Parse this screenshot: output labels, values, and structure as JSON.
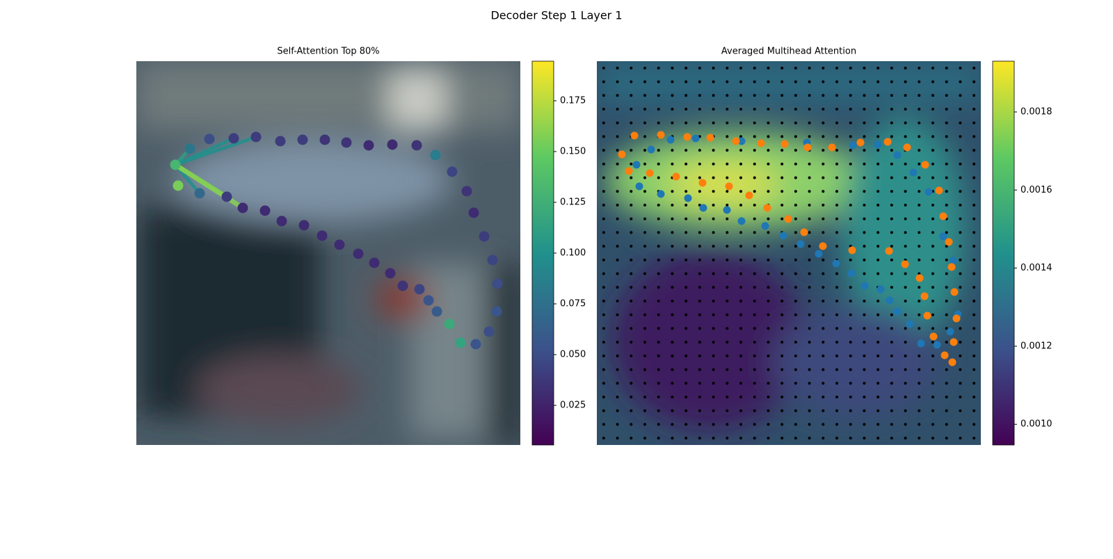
{
  "title": "Decoder Step 1 Layer 1",
  "chart_data": [
    {
      "type": "scatter",
      "title": "Self-Attention Top 80%",
      "xlim": [
        0,
        552
      ],
      "ylim": [
        552,
        0
      ],
      "x": [
        56,
        60,
        77,
        91,
        105,
        140,
        172,
        130,
        153,
        185,
        207,
        239,
        271,
        302,
        334,
        368,
        403,
        430,
        454,
        475,
        485,
        500,
        512,
        519,
        518,
        507,
        488,
        466,
        450,
        432,
        420,
        407,
        383,
        365,
        342,
        319,
        292,
        267,
        241,
        209
      ],
      "y": [
        149,
        179,
        126,
        190,
        112,
        111,
        109,
        195,
        211,
        215,
        115,
        113,
        113,
        117,
        121,
        120,
        121,
        135,
        159,
        187,
        218,
        252,
        286,
        320,
        360,
        389,
        407,
        405,
        378,
        360,
        344,
        328,
        323,
        305,
        290,
        277,
        264,
        251,
        236,
        230
      ],
      "values": [
        0.13,
        0.155,
        0.08,
        0.07,
        0.05,
        0.04,
        0.04,
        0.04,
        0.03,
        0.03,
        0.04,
        0.04,
        0.035,
        0.035,
        0.03,
        0.03,
        0.035,
        0.085,
        0.045,
        0.035,
        0.03,
        0.04,
        0.045,
        0.05,
        0.055,
        0.05,
        0.055,
        0.115,
        0.12,
        0.06,
        0.055,
        0.045,
        0.035,
        0.03,
        0.03,
        0.03,
        0.03,
        0.03,
        0.03,
        0.03
      ],
      "links": {
        "x": [
          77,
          91,
          140,
          172,
          130,
          153
        ],
        "y": [
          126,
          190,
          111,
          109,
          195,
          211
        ],
        "values": [
          0.11,
          0.1,
          0.1,
          0.1,
          0.15,
          0.16
        ]
      },
      "clim": [
        0.0055,
        0.1945
      ],
      "cticks": [
        0.025,
        {
          "value": 0.05,
          "label": "0.050"
        },
        0.075,
        {
          "value": 0.1,
          "label": "0.100"
        },
        0.125,
        {
          "value": 0.15,
          "label": "0.150"
        },
        0.175
      ]
    },
    {
      "type": "scatter",
      "title": "Averaged Multihead Attention",
      "xlim": [
        0,
        552
      ],
      "ylim": [
        552,
        0
      ],
      "series": [
        {
          "color": "#1f77b4",
          "x": [
            57,
            78,
            61,
            92,
            106,
            131,
            142,
            153,
            187,
            208,
            208,
            242,
            268,
            293,
            302,
            319,
            344,
            368,
            366,
            385,
            404,
            408,
            421,
            432,
            432,
            450,
            455,
            466,
            477,
            489,
            498,
            508,
            512,
            519
          ],
          "values": [
            149,
            127,
            180,
            191,
            113,
            197,
            111,
            211,
            214,
            115,
            230,
            237,
            251,
            263,
            117,
            277,
            291,
            121,
            305,
            323,
            120,
            328,
            344,
            135,
            360,
            378,
            160,
            406,
            188,
            408,
            252,
            389,
            287,
            364
          ]
        },
        {
          "color": "#ff7f0e",
          "x": [
            36,
            54,
            46,
            76,
            92,
            114,
            130,
            152,
            163,
            190,
            200,
            219,
            236,
            245,
            270,
            275,
            298,
            303,
            325,
            338,
            367,
            379,
            418,
            420,
            443,
            446,
            464,
            472,
            471,
            492,
            475,
            498,
            484,
            506,
            500,
            510,
            511,
            514,
            513,
            517
          ],
          "values": [
            134,
            107,
            158,
            161,
            106,
            166,
            109,
            175,
            110,
            180,
            115,
            193,
            118,
            211,
            119,
            227,
            246,
            124,
            266,
            124,
            272,
            117,
            116,
            273,
            292,
            124,
            312,
            149,
            338,
            186,
            366,
            223,
            396,
            260,
            423,
            296,
            433,
            332,
            404,
            370
          ]
        }
      ],
      "clim": [
        0.000947,
        0.00193
      ],
      "cticks": [
        {
          "value": 0.001,
          "label": "0.0010"
        },
        0.0012,
        0.0014,
        0.0016,
        0.0018
      ]
    }
  ]
}
